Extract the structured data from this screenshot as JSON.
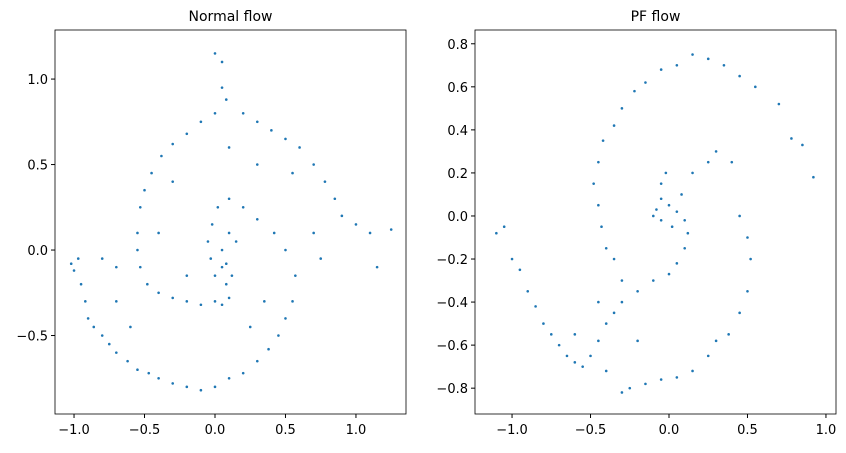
{
  "chart_data": [
    {
      "type": "scatter",
      "title": "Normal flow",
      "color": "#1f77b4",
      "xlim": [
        -1.135,
        1.355
      ],
      "ylim": [
        -0.959,
        1.287
      ],
      "xticks": [
        {
          "value": -1.0,
          "label": "−1.0"
        },
        {
          "value": -0.5,
          "label": "−0.5"
        },
        {
          "value": 0.0,
          "label": "0.0"
        },
        {
          "value": 0.5,
          "label": "0.5"
        },
        {
          "value": 1.0,
          "label": "1.0"
        }
      ],
      "yticks": [
        {
          "value": -0.5,
          "label": "−0.5"
        },
        {
          "value": 0.0,
          "label": "0.0"
        },
        {
          "value": 0.5,
          "label": "0.5"
        },
        {
          "value": 1.0,
          "label": "1.0"
        }
      ],
      "x": [
        -1.02,
        -1.0,
        -0.97,
        -0.95,
        -0.92,
        -0.9,
        -0.86,
        -0.8,
        -0.75,
        -0.7,
        -0.62,
        -0.55,
        -0.47,
        -0.4,
        -0.3,
        -0.2,
        -0.1,
        0.0,
        0.1,
        0.2,
        0.3,
        0.38,
        0.45,
        0.5,
        0.55,
        0.57,
        0.5,
        0.42,
        0.3,
        0.2,
        0.1,
        0.02,
        -0.02,
        -0.05,
        -0.03,
        0.05,
        0.08,
        0.1,
        0.05,
        0.0,
        0.05,
        0.05,
        0.08,
        0.0,
        -0.1,
        -0.2,
        -0.3,
        -0.38,
        -0.45,
        -0.5,
        -0.53,
        -0.55,
        -0.55,
        -0.53,
        -0.48,
        -0.4,
        -0.3,
        -0.2,
        -0.1,
        0.0,
        0.2,
        0.3,
        0.4,
        0.5,
        0.6,
        0.7,
        0.78,
        0.85,
        0.9,
        1.0,
        1.1,
        1.25,
        1.15,
        0.7,
        0.75,
        0.55,
        0.3,
        0.1,
        0.05,
        0.08,
        0.12,
        0.1,
        0.0,
        0.15,
        -0.2,
        -0.3,
        -0.4,
        0.35,
        0.25,
        -0.6,
        -0.7,
        -0.8,
        -0.7
      ],
      "y": [
        -0.08,
        -0.12,
        -0.05,
        -0.2,
        -0.3,
        -0.4,
        -0.45,
        -0.5,
        -0.55,
        -0.6,
        -0.65,
        -0.7,
        -0.72,
        -0.75,
        -0.78,
        -0.8,
        -0.82,
        -0.8,
        -0.75,
        -0.72,
        -0.65,
        -0.58,
        -0.5,
        -0.4,
        -0.3,
        -0.15,
        0.0,
        0.1,
        0.18,
        0.25,
        0.3,
        0.25,
        0.15,
        0.05,
        -0.05,
        -0.1,
        -0.2,
        -0.28,
        -0.32,
        1.15,
        1.1,
        0.95,
        0.88,
        0.8,
        0.75,
        0.68,
        0.62,
        0.55,
        0.45,
        0.35,
        0.25,
        0.1,
        0.0,
        -0.1,
        -0.2,
        -0.25,
        -0.28,
        -0.3,
        -0.32,
        -0.3,
        0.8,
        0.75,
        0.7,
        0.65,
        0.6,
        0.5,
        0.4,
        0.3,
        0.2,
        0.15,
        0.1,
        0.12,
        -0.1,
        0.1,
        -0.05,
        0.45,
        0.5,
        0.6,
        0.0,
        -0.08,
        -0.15,
        0.1,
        -0.15,
        0.05,
        -0.15,
        0.4,
        0.1,
        -0.3,
        -0.45,
        -0.45,
        -0.3,
        -0.05,
        -0.1
      ]
    },
    {
      "type": "scatter",
      "title": "PF flow",
      "color": "#1f77b4",
      "xlim": [
        -1.236,
        1.064
      ],
      "ylim": [
        -0.92,
        0.864
      ],
      "xticks": [
        {
          "value": -1.0,
          "label": "−1.0"
        },
        {
          "value": -0.5,
          "label": "−0.5"
        },
        {
          "value": 0.0,
          "label": "0.0"
        },
        {
          "value": 0.5,
          "label": "0.5"
        },
        {
          "value": 1.0,
          "label": "1.0"
        }
      ],
      "yticks": [
        {
          "value": -0.8,
          "label": "−0.8"
        },
        {
          "value": -0.6,
          "label": "−0.6"
        },
        {
          "value": -0.4,
          "label": "−0.4"
        },
        {
          "value": -0.2,
          "label": "−0.2"
        },
        {
          "value": 0.0,
          "label": "0.0"
        },
        {
          "value": 0.2,
          "label": "0.2"
        },
        {
          "value": 0.4,
          "label": "0.4"
        },
        {
          "value": 0.6,
          "label": "0.6"
        },
        {
          "value": 0.8,
          "label": "0.8"
        }
      ],
      "x": [
        -1.1,
        -1.05,
        -1.0,
        -0.95,
        -0.9,
        -0.85,
        -0.8,
        -0.75,
        -0.7,
        -0.65,
        -0.6,
        -0.55,
        -0.5,
        -0.45,
        -0.4,
        -0.35,
        -0.3,
        -0.2,
        -0.1,
        0.0,
        0.05,
        0.1,
        0.12,
        0.1,
        0.05,
        0.0,
        -0.05,
        -0.08,
        -0.1,
        -0.05,
        0.02,
        0.08,
        0.15,
        0.25,
        0.3,
        0.4,
        -0.05,
        -0.02,
        0.92,
        0.85,
        0.78,
        0.7,
        0.55,
        0.45,
        0.35,
        0.25,
        0.15,
        0.05,
        -0.05,
        -0.15,
        -0.22,
        -0.3,
        -0.35,
        -0.42,
        -0.45,
        -0.48,
        -0.45,
        -0.43,
        -0.4,
        -0.35,
        -0.3,
        -0.3,
        -0.25,
        -0.15,
        -0.05,
        0.05,
        0.15,
        0.25,
        0.3,
        0.38,
        0.45,
        0.5,
        0.52,
        0.5,
        0.45,
        -0.2,
        -0.4,
        -0.6,
        -0.45
      ],
      "y": [
        -0.08,
        -0.05,
        -0.2,
        -0.25,
        -0.35,
        -0.42,
        -0.5,
        -0.55,
        -0.6,
        -0.65,
        -0.68,
        -0.7,
        -0.65,
        -0.58,
        -0.5,
        -0.45,
        -0.4,
        -0.35,
        -0.3,
        -0.27,
        -0.22,
        -0.15,
        -0.08,
        -0.02,
        0.02,
        0.05,
        0.08,
        0.03,
        0.0,
        -0.02,
        -0.05,
        0.1,
        0.2,
        0.25,
        0.3,
        0.25,
        0.15,
        0.2,
        0.18,
        0.33,
        0.36,
        0.52,
        0.6,
        0.65,
        0.7,
        0.73,
        0.75,
        0.7,
        0.68,
        0.62,
        0.58,
        0.5,
        0.42,
        0.35,
        0.25,
        0.15,
        0.05,
        -0.05,
        -0.15,
        -0.2,
        -0.3,
        -0.82,
        -0.8,
        -0.78,
        -0.76,
        -0.75,
        -0.72,
        -0.65,
        -0.58,
        -0.55,
        -0.45,
        -0.35,
        -0.2,
        -0.1,
        0.0,
        -0.58,
        -0.72,
        -0.55,
        -0.4
      ]
    }
  ]
}
